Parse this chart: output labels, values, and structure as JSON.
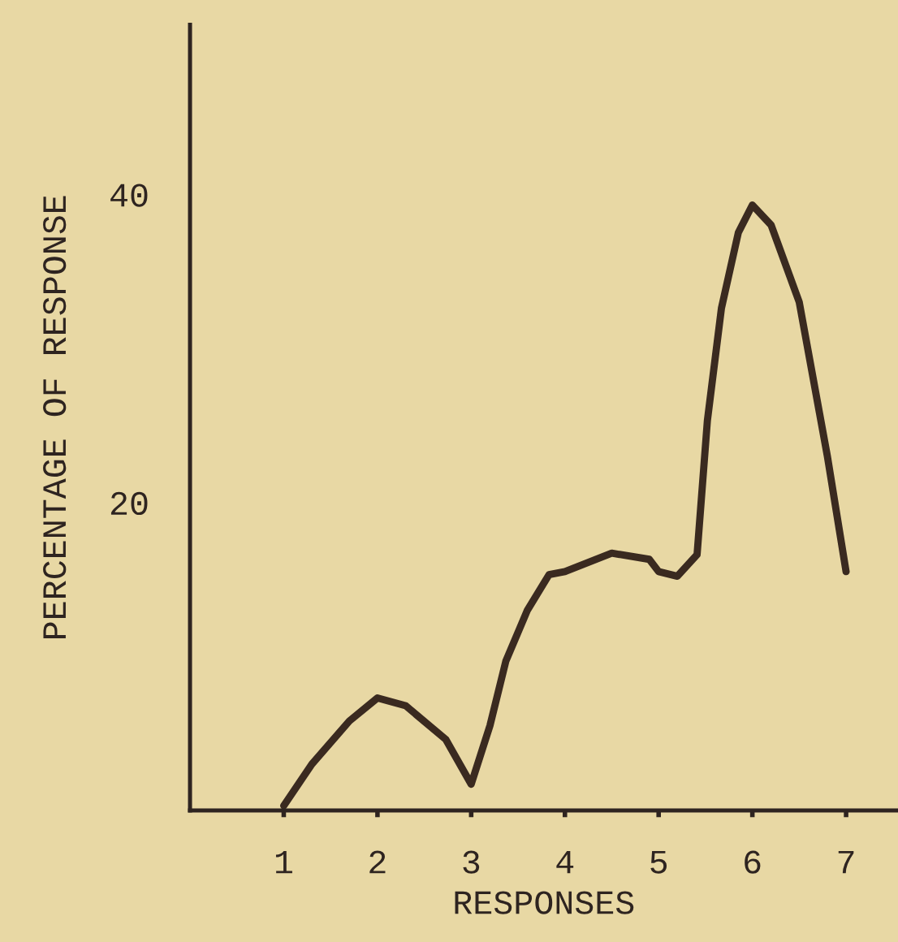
{
  "chart_data": {
    "type": "line",
    "xlabel": "RESPONSES",
    "ylabel": "PERCENTAGE OF RESPONSE",
    "xlim": [
      0,
      7.55
    ],
    "ylim": [
      0,
      51
    ],
    "xticks": [
      1,
      2,
      3,
      4,
      5,
      6,
      7
    ],
    "yticks": [
      20,
      40
    ],
    "grid": false,
    "marker": "none",
    "line_style": "solid",
    "series": [
      {
        "color": "#3a2a20",
        "x": [
          1.0,
          1.3,
          1.7,
          2.0,
          2.3,
          2.73,
          3.0,
          3.2,
          3.37,
          3.6,
          3.83,
          4.0,
          4.5,
          4.9,
          5.0,
          5.2,
          5.41,
          5.52,
          5.67,
          5.85,
          6.0,
          6.2,
          6.5,
          6.8,
          7.0
        ],
        "values": [
          0.3,
          3.0,
          5.8,
          7.3,
          6.8,
          4.6,
          1.7,
          5.5,
          9.7,
          13.0,
          15.3,
          15.5,
          16.7,
          16.3,
          15.5,
          15.2,
          16.6,
          25.3,
          32.6,
          37.5,
          39.3,
          38.0,
          33.0,
          23.0,
          15.5
        ]
      }
    ]
  }
}
